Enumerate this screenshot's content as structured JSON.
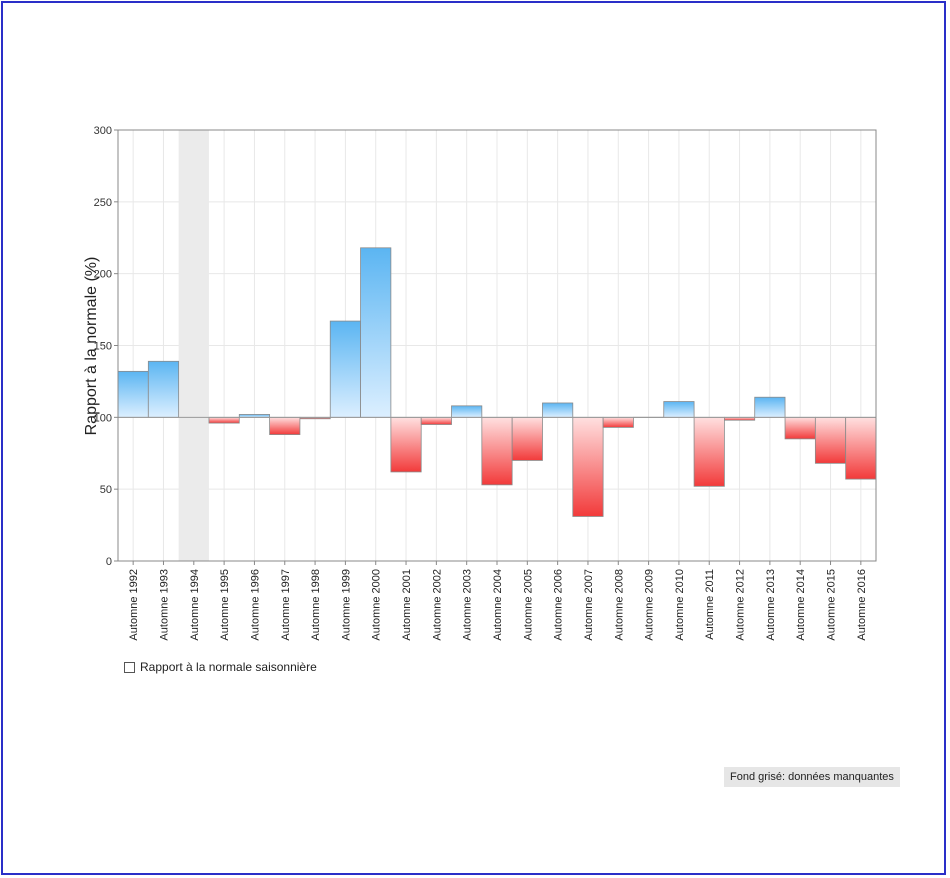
{
  "chart_data": {
    "type": "bar",
    "ylabel": "Rapport à la normale (%)",
    "ylim": [
      0,
      300
    ],
    "yticks": [
      0,
      50,
      100,
      150,
      200,
      250,
      300
    ],
    "baseline": 100,
    "grid": true,
    "categories": [
      "Automne 1992",
      "Automne 1993",
      "Automne 1994",
      "Automne 1995",
      "Automne 1996",
      "Automne 1997",
      "Automne 1998",
      "Automne 1999",
      "Automne 2000",
      "Automne 2001",
      "Automne 2002",
      "Automne 2003",
      "Automne 2004",
      "Automne 2005",
      "Automne 2006",
      "Automne 2007",
      "Automne 2008",
      "Automne 2009",
      "Automne 2010",
      "Automne 2011",
      "Automne 2012",
      "Automne 2013",
      "Automne 2014",
      "Automne 2015",
      "Automne 2016"
    ],
    "values": [
      132,
      139,
      null,
      96,
      102,
      88,
      99,
      167,
      218,
      62,
      95,
      108,
      53,
      70,
      110,
      31,
      93,
      100,
      111,
      52,
      98,
      114,
      85,
      68,
      57
    ],
    "missing_categories": [
      "Automne 1994"
    ],
    "colors": {
      "above": "#5bb5f2",
      "above_light": "#dcefff",
      "below": "#f23a3a",
      "below_light": "#ffe0e0",
      "missing": "#ebebeb",
      "grid": "#e8e8e8",
      "axis": "#888888"
    }
  },
  "legend": {
    "label": "Rapport à la normale saisonnière"
  },
  "note": "Fond grisé: données manquantes"
}
